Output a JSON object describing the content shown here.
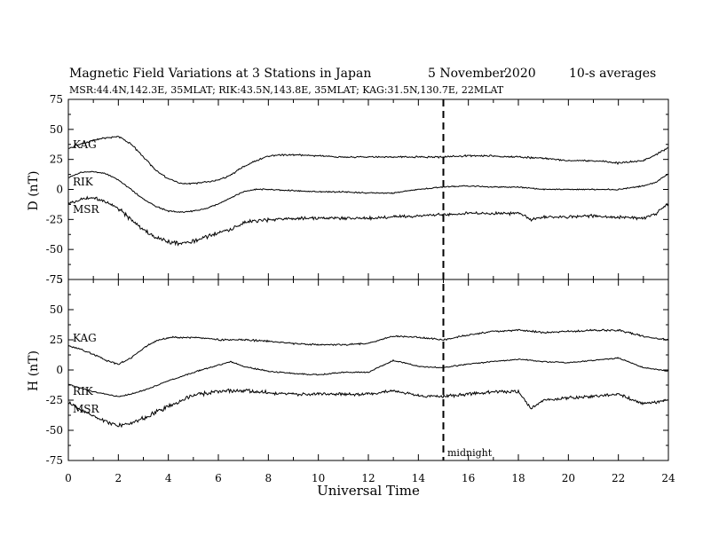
{
  "header": {
    "title": "Magnetic Field Variations at 3 Stations in Japan",
    "date": "5   November",
    "year": "2020",
    "averaging": "10-s averages",
    "stations": "MSR:44.4N,142.3E, 35MLAT;  RIK:43.5N,143.8E, 35MLAT;  KAG:31.5N,130.7E, 22MLAT"
  },
  "chart_data": [
    {
      "type": "line",
      "panel": "D",
      "ylabel": "D (nT)",
      "ylim": [
        -75,
        75
      ],
      "yticks": [
        75,
        50,
        25,
        0,
        -25,
        -50,
        -75
      ],
      "xlim": [
        0,
        24
      ],
      "series": [
        {
          "name": "KAG",
          "x": [
            0,
            0.5,
            1,
            1.5,
            2,
            2.5,
            3,
            3.5,
            4,
            4.5,
            5,
            5.5,
            6,
            6.5,
            7,
            7.5,
            8,
            9,
            10,
            11,
            12,
            13,
            14,
            15,
            16,
            17,
            18,
            19,
            20,
            21,
            22,
            23,
            23.5,
            24
          ],
          "values": [
            34,
            38,
            41,
            43,
            44,
            38,
            27,
            16,
            9,
            5,
            5,
            6,
            8,
            12,
            19,
            24,
            28,
            29,
            28,
            27,
            27,
            27,
            27,
            27,
            28,
            28,
            27,
            26,
            24,
            24,
            22,
            24,
            29,
            35
          ]
        },
        {
          "name": "RIK",
          "x": [
            0,
            0.5,
            1,
            1.5,
            2,
            2.5,
            3,
            3.5,
            4,
            4.5,
            5,
            5.5,
            6,
            6.5,
            7,
            7.5,
            8,
            9,
            10,
            11,
            12,
            13,
            14,
            15,
            16,
            17,
            18,
            19,
            20,
            21,
            22,
            23,
            23.5,
            24
          ],
          "values": [
            10,
            14,
            15,
            13,
            8,
            0,
            -8,
            -14,
            -18,
            -19,
            -18,
            -16,
            -12,
            -7,
            -2,
            0,
            0,
            -1,
            -2,
            -2,
            -3,
            -3,
            0,
            2,
            3,
            2,
            2,
            0,
            0,
            0,
            0,
            3,
            6,
            13
          ]
        },
        {
          "name": "MSR",
          "x": [
            0,
            0.5,
            1,
            1.5,
            2,
            2.5,
            3,
            3.5,
            4,
            4.5,
            5,
            5.5,
            6,
            6.5,
            7,
            7.5,
            8,
            9,
            10,
            11,
            12,
            13,
            14,
            15,
            16,
            17,
            18,
            18.5,
            19,
            20,
            21,
            22,
            23,
            23.5,
            24
          ],
          "values": [
            -12,
            -8,
            -7,
            -10,
            -16,
            -25,
            -34,
            -40,
            -44,
            -45,
            -43,
            -40,
            -36,
            -33,
            -28,
            -26,
            -25,
            -24,
            -24,
            -24,
            -24,
            -23,
            -22,
            -21,
            -20,
            -20,
            -20,
            -25,
            -23,
            -23,
            -22,
            -23,
            -24,
            -20,
            -12
          ]
        }
      ],
      "labels": [
        "KAG",
        "RIK",
        "MSR"
      ]
    },
    {
      "type": "line",
      "panel": "H",
      "ylabel": "H (nT)",
      "xlabel": "Universal Time",
      "ylim": [
        -75,
        75
      ],
      "yticks": [
        75,
        50,
        25,
        0,
        -25,
        -50,
        -75
      ],
      "xlim": [
        0,
        24
      ],
      "xticks": [
        0,
        2,
        4,
        6,
        8,
        10,
        12,
        14,
        16,
        18,
        20,
        22,
        24
      ],
      "annotation": "midnight",
      "midnight_x": 15,
      "series": [
        {
          "name": "KAG",
          "x": [
            0,
            0.5,
            1,
            1.5,
            2,
            2.5,
            3,
            3.5,
            4,
            5,
            6,
            7,
            8,
            9,
            10,
            11,
            12,
            13,
            14,
            15,
            16,
            17,
            18,
            19,
            20,
            21,
            22,
            23,
            24
          ],
          "values": [
            20,
            17,
            13,
            8,
            5,
            10,
            18,
            24,
            27,
            27,
            25,
            25,
            24,
            22,
            21,
            21,
            22,
            28,
            27,
            25,
            29,
            32,
            33,
            31,
            32,
            33,
            33,
            28,
            25
          ]
        },
        {
          "name": "RIK",
          "x": [
            0,
            0.5,
            1,
            1.5,
            2,
            2.5,
            3,
            3.5,
            4,
            5,
            6,
            6.5,
            7,
            8,
            9,
            10,
            11,
            12,
            13,
            14,
            15,
            16,
            17,
            18,
            19,
            20,
            21,
            22,
            23,
            24
          ],
          "values": [
            -12,
            -15,
            -18,
            -20,
            -22,
            -20,
            -17,
            -13,
            -9,
            -2,
            4,
            7,
            3,
            -1,
            -3,
            -4,
            -2,
            -2,
            8,
            3,
            2,
            5,
            7,
            9,
            7,
            6,
            8,
            10,
            2,
            -1
          ]
        },
        {
          "name": "MSR",
          "x": [
            0,
            0.5,
            1,
            1.5,
            2,
            2.5,
            3,
            3.5,
            4,
            5,
            6,
            7,
            8,
            9,
            10,
            11,
            12,
            13,
            14,
            15,
            16,
            17,
            18,
            18.5,
            19,
            20,
            21,
            22,
            23,
            24
          ],
          "values": [
            -27,
            -33,
            -38,
            -43,
            -46,
            -44,
            -40,
            -35,
            -30,
            -21,
            -17,
            -17,
            -19,
            -20,
            -20,
            -20,
            -20,
            -17,
            -21,
            -22,
            -20,
            -18,
            -18,
            -32,
            -25,
            -23,
            -22,
            -20,
            -28,
            -25
          ]
        }
      ],
      "labels": [
        "KAG",
        "RIK",
        "MSR"
      ]
    }
  ]
}
